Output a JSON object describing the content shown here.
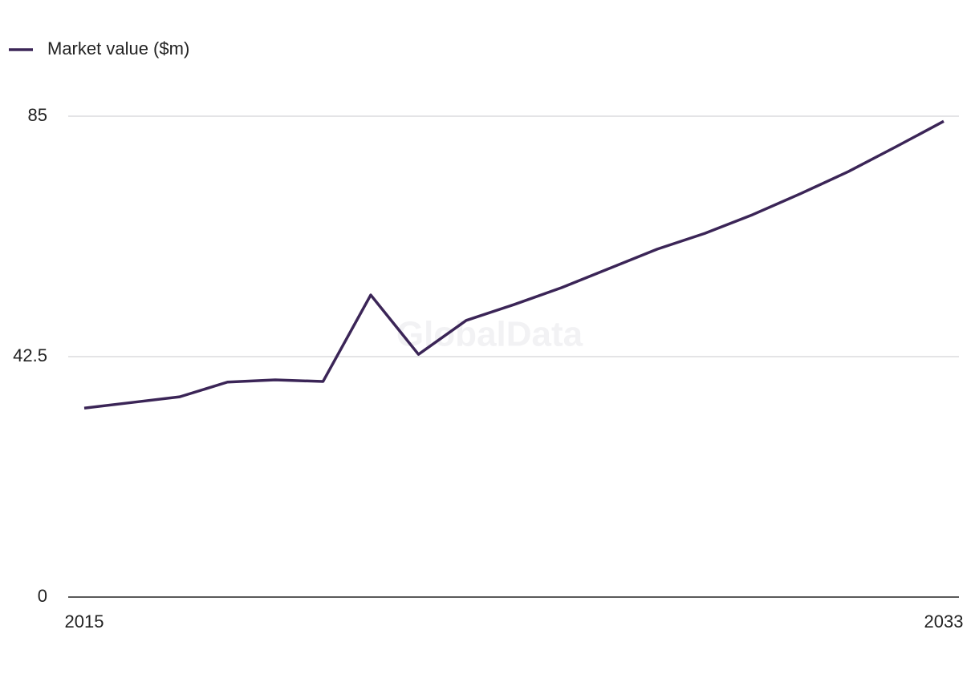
{
  "chart_data": {
    "type": "line",
    "watermark": "GlobalData",
    "x": [
      2015,
      2016,
      2017,
      2018,
      2019,
      2020,
      2021,
      2022,
      2023,
      2024,
      2025,
      2026,
      2027,
      2028,
      2029,
      2030,
      2031,
      2032,
      2033
    ],
    "series": [
      {
        "name": "Market value ($m)",
        "color": "#3b2557",
        "values": [
          33.4,
          34.4,
          35.4,
          38.0,
          38.4,
          38.1,
          53.4,
          42.9,
          48.9,
          51.7,
          54.7,
          58.1,
          61.5,
          64.3,
          67.6,
          71.3,
          75.2,
          79.6,
          84.1
        ]
      }
    ],
    "xlim": [
      2015,
      2033
    ],
    "xticks": [
      2015,
      2033
    ],
    "ylim": [
      0,
      85
    ],
    "yticks": [
      0,
      42.5,
      85
    ],
    "grid": true
  }
}
